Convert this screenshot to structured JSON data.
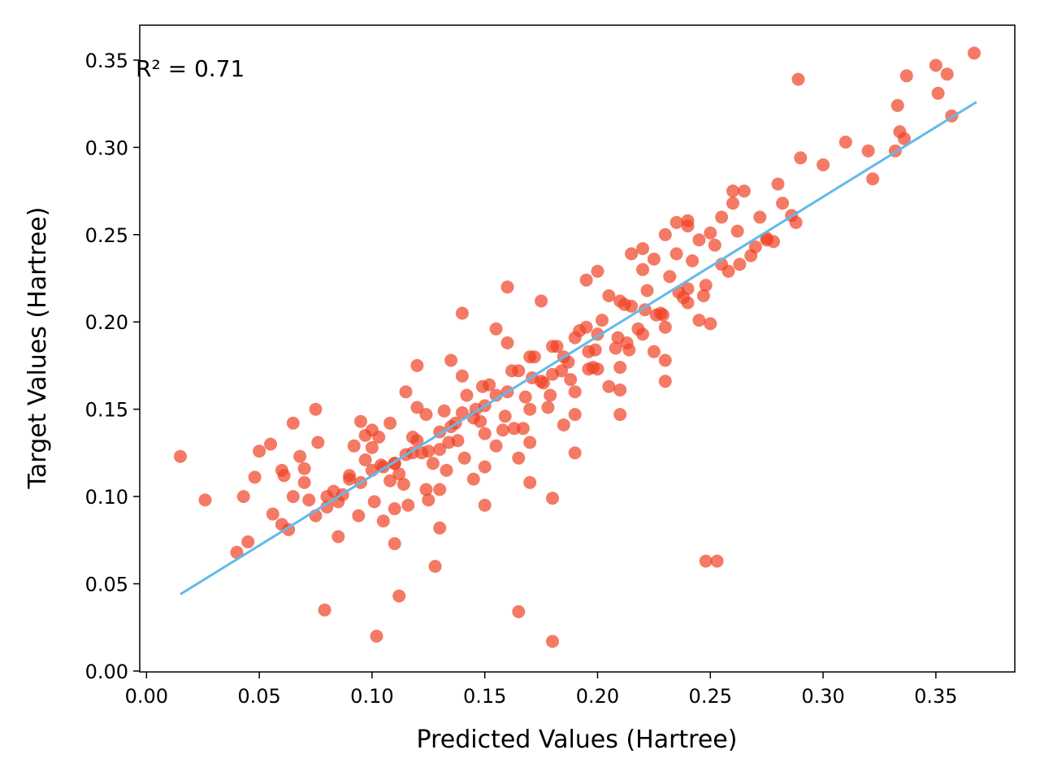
{
  "chart_data": {
    "type": "scatter",
    "title": "",
    "xlabel": "Predicted Values (Hartree)",
    "ylabel": "Target Values (Hartree)",
    "xlim": [
      -0.003,
      0.385
    ],
    "ylim": [
      -0.0005,
      0.37
    ],
    "x_ticks": [
      "0.00",
      "0.05",
      "0.10",
      "0.15",
      "0.20",
      "0.25",
      "0.30",
      "0.35"
    ],
    "y_ticks": [
      "0.00",
      "0.05",
      "0.10",
      "0.15",
      "0.20",
      "0.25",
      "0.30",
      "0.35"
    ],
    "grid": false,
    "legend": "none",
    "annotation": "R² = 0.71",
    "colors": {
      "points": "#ef4123",
      "fit_line": "#63b9eb"
    },
    "fit_line": {
      "x": [
        0.015,
        0.368
      ],
      "y": [
        0.044,
        0.326
      ]
    },
    "series": [
      {
        "points_x": [
          0.015,
          0.026,
          0.04,
          0.043,
          0.045,
          0.048,
          0.05,
          0.055,
          0.06,
          0.065,
          0.07,
          0.075,
          0.079,
          0.08,
          0.102,
          0.112,
          0.128,
          0.165,
          0.18,
          0.248,
          0.253,
          0.289,
          0.35,
          0.351,
          0.355,
          0.357,
          0.337,
          0.333,
          0.334,
          0.336,
          0.367,
          0.332,
          0.322,
          0.3,
          0.31,
          0.32,
          0.29,
          0.28,
          0.275,
          0.27,
          0.265,
          0.26,
          0.255,
          0.25,
          0.245,
          0.24,
          0.235,
          0.23,
          0.225,
          0.22,
          0.215,
          0.21,
          0.205,
          0.2,
          0.195,
          0.19,
          0.185,
          0.18,
          0.175,
          0.17,
          0.165,
          0.16,
          0.155,
          0.15,
          0.145,
          0.14,
          0.135,
          0.13,
          0.125,
          0.12,
          0.115,
          0.11,
          0.105,
          0.1,
          0.095,
          0.09,
          0.085,
          0.08,
          0.075,
          0.07,
          0.065,
          0.06,
          0.056,
          0.063,
          0.072,
          0.083,
          0.092,
          0.097,
          0.104,
          0.108,
          0.114,
          0.118,
          0.122,
          0.127,
          0.132,
          0.138,
          0.142,
          0.148,
          0.152,
          0.158,
          0.162,
          0.168,
          0.172,
          0.178,
          0.182,
          0.188,
          0.192,
          0.198,
          0.202,
          0.208,
          0.212,
          0.218,
          0.222,
          0.228,
          0.232,
          0.238,
          0.242,
          0.248,
          0.252,
          0.258,
          0.262,
          0.268,
          0.272,
          0.278,
          0.282,
          0.288,
          0.1,
          0.11,
          0.12,
          0.13,
          0.14,
          0.15,
          0.16,
          0.17,
          0.18,
          0.19,
          0.2,
          0.21,
          0.22,
          0.23,
          0.24,
          0.25,
          0.26,
          0.09,
          0.095,
          0.105,
          0.115,
          0.125,
          0.135,
          0.145,
          0.155,
          0.165,
          0.175,
          0.185,
          0.195,
          0.205,
          0.215,
          0.225,
          0.235,
          0.245,
          0.255,
          0.085,
          0.1,
          0.11,
          0.12,
          0.13,
          0.14,
          0.15,
          0.16,
          0.17,
          0.18,
          0.19,
          0.2,
          0.21,
          0.22,
          0.23,
          0.24,
          0.11,
          0.13,
          0.15,
          0.17,
          0.19,
          0.21,
          0.23,
          0.097,
          0.112,
          0.124,
          0.137,
          0.149,
          0.163,
          0.176,
          0.187,
          0.199,
          0.213,
          0.226,
          0.24,
          0.103,
          0.118,
          0.134,
          0.146,
          0.159,
          0.171,
          0.184,
          0.196,
          0.209,
          0.221,
          0.236,
          0.061,
          0.068,
          0.076,
          0.087,
          0.094,
          0.101,
          0.108,
          0.116,
          0.124,
          0.133,
          0.141,
          0.155,
          0.167,
          0.179,
          0.196,
          0.214,
          0.229,
          0.247,
          0.263,
          0.275,
          0.286
        ],
        "points_y": [
          0.123,
          0.098,
          0.068,
          0.1,
          0.074,
          0.111,
          0.126,
          0.13,
          0.084,
          0.142,
          0.116,
          0.15,
          0.035,
          0.1,
          0.02,
          0.043,
          0.06,
          0.034,
          0.017,
          0.063,
          0.063,
          0.339,
          0.347,
          0.331,
          0.342,
          0.318,
          0.341,
          0.324,
          0.309,
          0.305,
          0.354,
          0.298,
          0.282,
          0.29,
          0.303,
          0.298,
          0.294,
          0.279,
          0.247,
          0.243,
          0.275,
          0.268,
          0.26,
          0.251,
          0.247,
          0.255,
          0.239,
          0.25,
          0.236,
          0.23,
          0.209,
          0.212,
          0.215,
          0.193,
          0.197,
          0.191,
          0.18,
          0.17,
          0.166,
          0.18,
          0.172,
          0.16,
          0.158,
          0.152,
          0.145,
          0.148,
          0.14,
          0.137,
          0.126,
          0.132,
          0.124,
          0.119,
          0.117,
          0.115,
          0.108,
          0.112,
          0.097,
          0.094,
          0.089,
          0.108,
          0.1,
          0.115,
          0.09,
          0.081,
          0.098,
          0.103,
          0.129,
          0.135,
          0.118,
          0.142,
          0.107,
          0.134,
          0.125,
          0.119,
          0.149,
          0.132,
          0.158,
          0.143,
          0.164,
          0.138,
          0.172,
          0.157,
          0.18,
          0.151,
          0.186,
          0.167,
          0.195,
          0.174,
          0.201,
          0.185,
          0.21,
          0.196,
          0.218,
          0.205,
          0.226,
          0.214,
          0.235,
          0.221,
          0.244,
          0.229,
          0.252,
          0.238,
          0.26,
          0.246,
          0.268,
          0.257,
          0.128,
          0.093,
          0.151,
          0.104,
          0.169,
          0.117,
          0.188,
          0.131,
          0.099,
          0.147,
          0.229,
          0.161,
          0.242,
          0.178,
          0.258,
          0.199,
          0.275,
          0.11,
          0.143,
          0.086,
          0.16,
          0.098,
          0.178,
          0.11,
          0.196,
          0.122,
          0.212,
          0.141,
          0.224,
          0.163,
          0.239,
          0.183,
          0.257,
          0.201,
          0.233,
          0.077,
          0.138,
          0.073,
          0.175,
          0.082,
          0.205,
          0.095,
          0.22,
          0.108,
          0.186,
          0.125,
          0.173,
          0.147,
          0.193,
          0.166,
          0.211,
          0.119,
          0.127,
          0.136,
          0.15,
          0.16,
          0.174,
          0.197,
          0.121,
          0.113,
          0.147,
          0.142,
          0.163,
          0.139,
          0.165,
          0.177,
          0.184,
          0.188,
          0.204,
          0.219,
          0.134,
          0.125,
          0.131,
          0.15,
          0.146,
          0.168,
          0.172,
          0.183,
          0.191,
          0.207,
          0.217,
          0.112,
          0.123,
          0.131,
          0.101,
          0.089,
          0.097,
          0.109,
          0.095,
          0.104,
          0.115,
          0.122,
          0.129,
          0.139,
          0.158,
          0.173,
          0.184,
          0.204,
          0.215,
          0.233,
          0.248,
          0.261
        ]
      }
    ]
  }
}
